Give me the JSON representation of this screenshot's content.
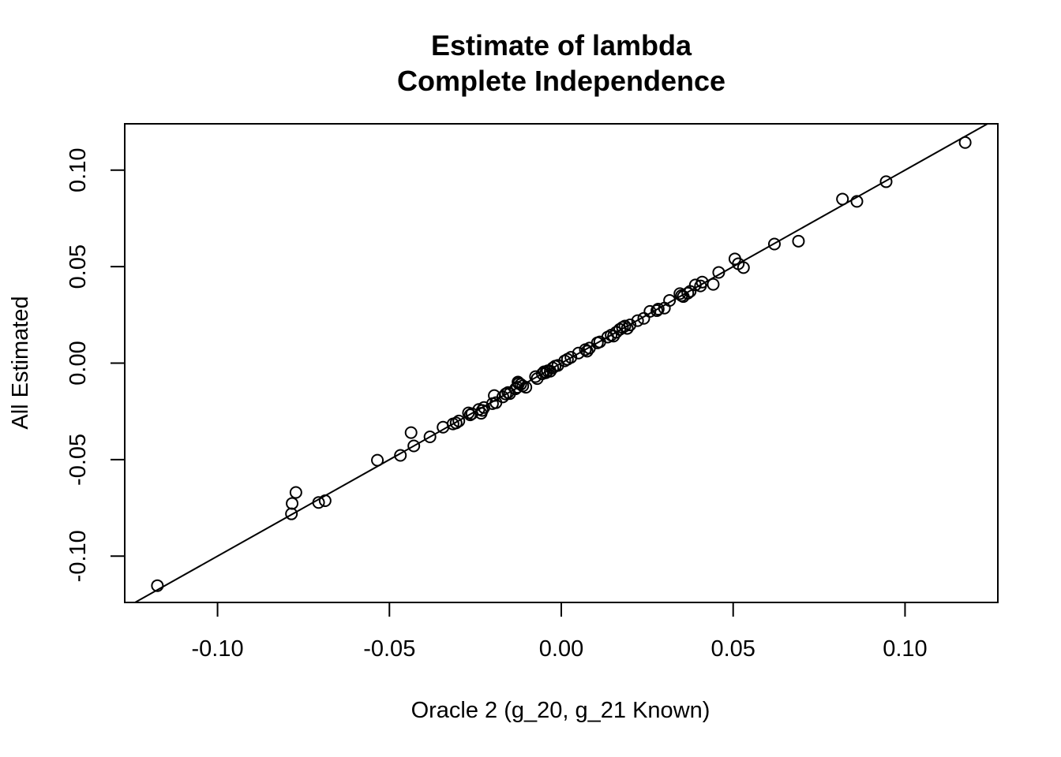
{
  "chart_data": {
    "type": "scatter",
    "title": "Estimate of lambda",
    "subtitle": "Complete Independence",
    "xlabel": "Oracle 2 (g_20, g_21 Known)",
    "ylabel": "All Estimated",
    "xlim": [
      -0.127,
      0.127
    ],
    "ylim": [
      -0.124,
      0.124
    ],
    "x_ticks": [
      -0.1,
      -0.05,
      0.0,
      0.05,
      0.1
    ],
    "x_tick_labels": [
      "-0.10",
      "-0.05",
      "0.00",
      "0.05",
      "0.10"
    ],
    "y_ticks": [
      -0.1,
      -0.05,
      0.0,
      0.05,
      0.1
    ],
    "y_tick_labels": [
      "-0.10",
      "-0.05",
      "0.00",
      "0.05",
      "0.10"
    ],
    "fit_line": {
      "intercept": 0.0,
      "slope": 1.0
    },
    "grid": false,
    "points": [
      [
        -0.1175,
        -0.1153
      ],
      [
        -0.0785,
        -0.0781
      ],
      [
        -0.0783,
        -0.0727
      ],
      [
        -0.0772,
        -0.067
      ],
      [
        -0.0706,
        -0.0722
      ],
      [
        -0.0687,
        -0.0713
      ],
      [
        -0.0535,
        -0.0503
      ],
      [
        -0.0468,
        -0.0478
      ],
      [
        -0.0437,
        -0.036
      ],
      [
        -0.0429,
        -0.0429
      ],
      [
        -0.0382,
        -0.0382
      ],
      [
        -0.0344,
        -0.0332
      ],
      [
        -0.0315,
        -0.0315
      ],
      [
        -0.0306,
        -0.031
      ],
      [
        -0.0298,
        -0.03
      ],
      [
        -0.027,
        -0.0258
      ],
      [
        -0.0265,
        -0.0268
      ],
      [
        -0.026,
        -0.0262
      ],
      [
        -0.024,
        -0.024
      ],
      [
        -0.0233,
        -0.026
      ],
      [
        -0.023,
        -0.0245
      ],
      [
        -0.0225,
        -0.023
      ],
      [
        -0.02,
        -0.021
      ],
      [
        -0.0195,
        -0.0168
      ],
      [
        -0.019,
        -0.0205
      ],
      [
        -0.017,
        -0.0175
      ],
      [
        -0.0162,
        -0.016
      ],
      [
        -0.0155,
        -0.0152
      ],
      [
        -0.015,
        -0.0158
      ],
      [
        -0.0133,
        -0.0133
      ],
      [
        -0.0128,
        -0.0125
      ],
      [
        -0.0126,
        -0.0098
      ],
      [
        -0.0124,
        -0.0105
      ],
      [
        -0.0118,
        -0.011
      ],
      [
        -0.0112,
        -0.0118
      ],
      [
        -0.0103,
        -0.0125
      ],
      [
        -0.0075,
        -0.007
      ],
      [
        -0.007,
        -0.008
      ],
      [
        -0.0055,
        -0.0055
      ],
      [
        -0.005,
        -0.0045
      ],
      [
        -0.0045,
        -0.005
      ],
      [
        -0.004,
        -0.004
      ],
      [
        -0.0032,
        -0.0042
      ],
      [
        -0.0025,
        -0.0025
      ],
      [
        -0.0018,
        -0.0016
      ],
      [
        -0.001,
        -0.0012
      ],
      [
        0.001,
        0.0012
      ],
      [
        0.0018,
        0.002
      ],
      [
        0.0028,
        0.003
      ],
      [
        0.005,
        0.0052
      ],
      [
        0.007,
        0.007
      ],
      [
        0.0075,
        0.0062
      ],
      [
        0.0082,
        0.0078
      ],
      [
        0.0105,
        0.0105
      ],
      [
        0.0112,
        0.011
      ],
      [
        0.0135,
        0.0135
      ],
      [
        0.0145,
        0.0145
      ],
      [
        0.0152,
        0.014
      ],
      [
        0.016,
        0.016
      ],
      [
        0.017,
        0.0175
      ],
      [
        0.0178,
        0.0185
      ],
      [
        0.0185,
        0.0192
      ],
      [
        0.0192,
        0.018
      ],
      [
        0.02,
        0.0198
      ],
      [
        0.0222,
        0.022
      ],
      [
        0.024,
        0.0232
      ],
      [
        0.0258,
        0.0268
      ],
      [
        0.0278,
        0.0272
      ],
      [
        0.0282,
        0.028
      ],
      [
        0.03,
        0.0285
      ],
      [
        0.0315,
        0.0325
      ],
      [
        0.0345,
        0.036
      ],
      [
        0.035,
        0.035
      ],
      [
        0.0355,
        0.0345
      ],
      [
        0.0368,
        0.0362
      ],
      [
        0.0375,
        0.0372
      ],
      [
        0.039,
        0.0405
      ],
      [
        0.0405,
        0.04
      ],
      [
        0.041,
        0.042
      ],
      [
        0.0442,
        0.0408
      ],
      [
        0.0458,
        0.047
      ],
      [
        0.0505,
        0.054
      ],
      [
        0.0515,
        0.0515
      ],
      [
        0.053,
        0.0495
      ],
      [
        0.062,
        0.0617
      ],
      [
        0.069,
        0.0632
      ],
      [
        0.0818,
        0.085
      ],
      [
        0.086,
        0.0838
      ],
      [
        0.0945,
        0.094
      ],
      [
        0.1175,
        0.1143
      ]
    ]
  }
}
